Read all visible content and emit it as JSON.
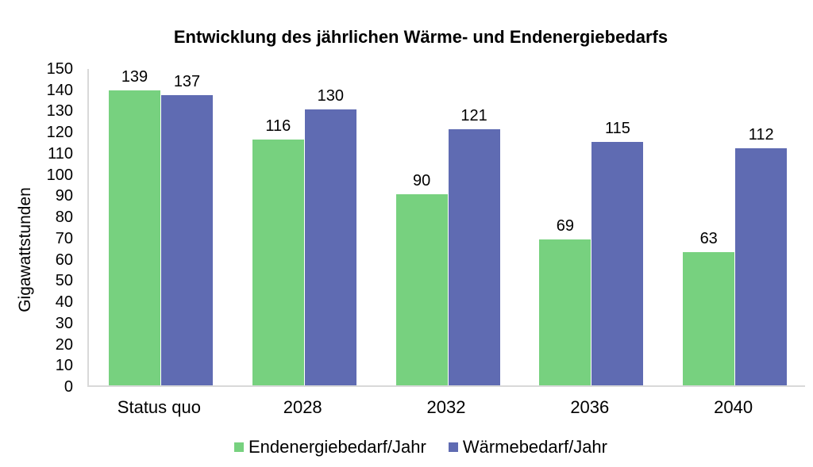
{
  "chart_data": {
    "type": "bar",
    "title": "Entwicklung des jährlichen Wärme- und Endenergiebedarfs",
    "ylabel": "Gigawattstunden",
    "xlabel": "",
    "categories": [
      "Status quo",
      "2028",
      "2032",
      "2036",
      "2040"
    ],
    "series": [
      {
        "name": "Endenergiebedarf/Jahr",
        "color": "#77d17f",
        "values": [
          139,
          116,
          90,
          69,
          63
        ]
      },
      {
        "name": "Wärmebedarf/Jahr",
        "color": "#5f6bb2",
        "values": [
          137,
          130,
          121,
          115,
          112
        ]
      }
    ],
    "ylim": [
      0,
      150
    ],
    "ytick_step": 10,
    "grid": false,
    "data_labels": true,
    "legend_position": "bottom"
  },
  "colors": {
    "axis_line": "#d9d9d9",
    "text": "#000000",
    "background": "#ffffff"
  }
}
